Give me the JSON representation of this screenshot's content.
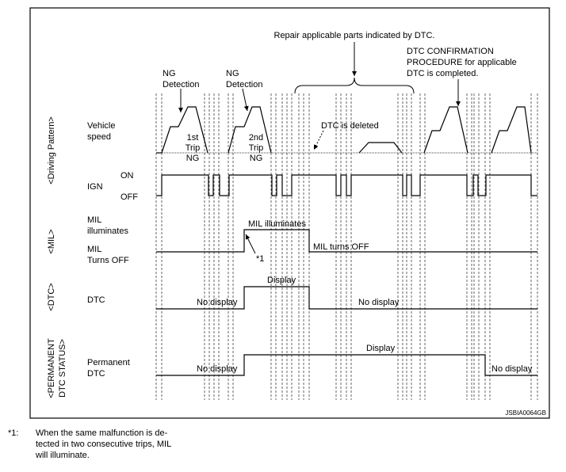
{
  "header": {
    "repair_note": "Repair applicable parts indicated by DTC.",
    "confirmation_note": [
      "DTC CONFIRMATION",
      "PROCEDURE for applicable",
      "DTC is completed."
    ],
    "ng_detection_1": [
      "NG",
      "Detection"
    ],
    "ng_detection_2": [
      "NG",
      "Detection"
    ]
  },
  "rows": {
    "driving_pattern": {
      "section": "<Driving Pattern>",
      "label": [
        "Vehicle",
        "speed"
      ],
      "trip_1": [
        "1st",
        "Trip",
        "NG"
      ],
      "trip_2": [
        "2nd",
        "Trip",
        "NG"
      ],
      "deleted": "DTC is deleted"
    },
    "ign": {
      "label": "IGN",
      "on": "ON",
      "off": "OFF"
    },
    "mil": {
      "section": "<MIL>",
      "on_label": [
        "MIL",
        "illuminates"
      ],
      "off_label": [
        "MIL",
        "Turns OFF"
      ],
      "on_state": "MIL illuminates",
      "note_ref": "*1",
      "off_state": "MIL turns OFF"
    },
    "dtc": {
      "section": "<DTC>",
      "label": "DTC",
      "display": "Display",
      "no_display_1": "No display",
      "no_display_2": "No display"
    },
    "permanent": {
      "section": [
        "<PERMANENT",
        "DTC STATUS>"
      ],
      "label": [
        "Permanent",
        "DTC"
      ],
      "display": "Display",
      "no_display_1": "No display",
      "no_display_2": "No display"
    }
  },
  "figure_id": "JSBIA0064GB",
  "footnote": {
    "marker": "*1:",
    "text": [
      "When the same malfunction is de-",
      "tected in two consecutive trips, MIL",
      "will illuminate."
    ]
  }
}
